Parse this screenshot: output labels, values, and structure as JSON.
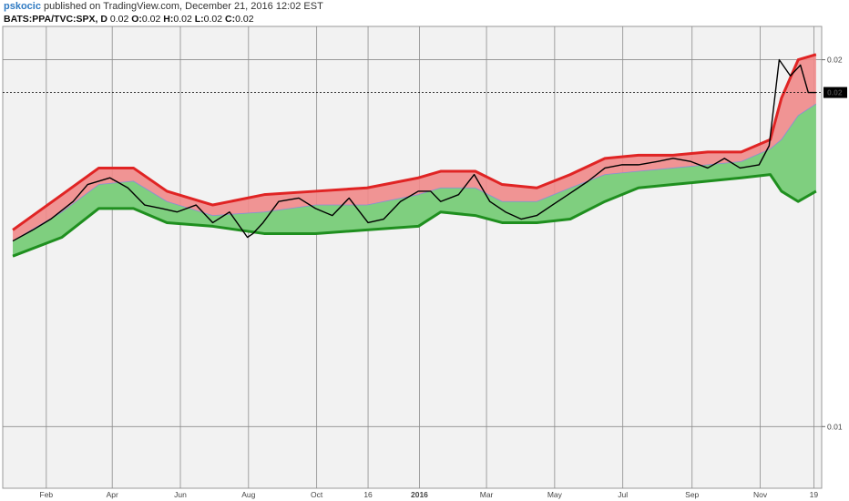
{
  "header": {
    "author": "pskocic",
    "published": "published on TradingView.com, December 21, 2016 12:02 EST",
    "symbol": "BATS:PPA/TVC:SPX, D",
    "open_label": "O:",
    "open": "0.02",
    "high_label": "H:",
    "high": "0.02",
    "low_label": "L:",
    "low": "0.02",
    "close_label": "C:",
    "close": "0.02",
    "last": "0.02"
  },
  "chart_data": {
    "type": "line",
    "title": "",
    "xlabel": "",
    "ylabel": "",
    "y_scale": "log",
    "ylim": [
      0.0089,
      0.0213
    ],
    "y_ticks": [
      0.01,
      0.02
    ],
    "y_tick_labels": [
      "0.01",
      "0.02"
    ],
    "x_ticks": [
      "Feb",
      "Apr",
      "Jun",
      "Aug",
      "Oct",
      "16",
      "2016",
      "Mar",
      "May",
      "Jul",
      "Sep",
      "Nov",
      "19"
    ],
    "x_tick_bold": [
      "2016"
    ],
    "last_value_label": "0.02",
    "last_value": 0.0188,
    "grid": true,
    "legend": "none",
    "colors": {
      "price": "#000000",
      "upper_band": "#e02424",
      "lower_band": "#1f8f1f",
      "upper_fill": "#f08a8a",
      "mid_fill": "#b7b9f2",
      "lower_fill": "#7fcf7f",
      "axis_highlight": "#000000"
    },
    "series": [
      {
        "name": "",
        "role": "price",
        "x_dates": [
          "2015-01-02",
          "2015-01-20",
          "2015-02-05",
          "2015-02-25",
          "2015-03-10",
          "2015-03-30",
          "2015-04-15",
          "2015-04-30",
          "2015-05-15",
          "2015-05-29",
          "2015-06-15",
          "2015-06-30",
          "2015-07-15",
          "2015-07-31",
          "2015-08-05",
          "2015-08-14",
          "2015-08-28",
          "2015-09-15",
          "2015-09-30",
          "2015-10-15",
          "2015-10-30",
          "2015-11-16",
          "2015-11-30",
          "2015-12-15",
          "2015-12-31",
          "2016-01-11",
          "2016-01-20",
          "2016-02-05",
          "2016-02-19",
          "2016-03-04",
          "2016-03-18",
          "2016-04-01",
          "2016-04-15",
          "2016-04-29",
          "2016-05-13",
          "2016-05-31",
          "2016-06-15",
          "2016-06-30",
          "2016-07-15",
          "2016-08-01",
          "2016-08-15",
          "2016-08-31",
          "2016-09-15",
          "2016-09-30",
          "2016-10-14",
          "2016-10-31",
          "2016-11-09",
          "2016-11-18",
          "2016-11-28",
          "2016-12-07",
          "2016-12-14",
          "2016-12-21"
        ],
        "values": [
          0.0142,
          0.0145,
          0.0148,
          0.0153,
          0.0158,
          0.016,
          0.0157,
          0.0152,
          0.0151,
          0.015,
          0.0152,
          0.0147,
          0.015,
          0.0143,
          0.0144,
          0.0147,
          0.0153,
          0.0154,
          0.0151,
          0.0149,
          0.0154,
          0.0147,
          0.0148,
          0.0153,
          0.0156,
          0.0156,
          0.0153,
          0.0155,
          0.0161,
          0.0153,
          0.015,
          0.0148,
          0.0149,
          0.0152,
          0.0155,
          0.0159,
          0.0163,
          0.0164,
          0.0164,
          0.0165,
          0.0166,
          0.0165,
          0.0163,
          0.0166,
          0.0163,
          0.0164,
          0.017,
          0.02,
          0.0194,
          0.0198,
          0.0188,
          0.0188
        ]
      },
      {
        "name": "",
        "role": "upper_band",
        "x_dates": [
          "2015-01-02",
          "2015-02-15",
          "2015-03-20",
          "2015-04-20",
          "2015-05-20",
          "2015-06-30",
          "2015-08-15",
          "2015-09-30",
          "2015-11-15",
          "2015-12-31",
          "2016-01-20",
          "2016-02-20",
          "2016-03-15",
          "2016-04-15",
          "2016-05-15",
          "2016-06-15",
          "2016-07-15",
          "2016-08-15",
          "2016-09-15",
          "2016-10-15",
          "2016-11-10",
          "2016-11-20",
          "2016-12-05",
          "2016-12-21"
        ],
        "values": [
          0.0145,
          0.0155,
          0.0163,
          0.0163,
          0.0156,
          0.0152,
          0.0155,
          0.0156,
          0.0157,
          0.016,
          0.0162,
          0.0162,
          0.0158,
          0.0157,
          0.0161,
          0.0166,
          0.0167,
          0.0167,
          0.0168,
          0.0168,
          0.0172,
          0.0186,
          0.02,
          0.0202
        ]
      },
      {
        "name": "",
        "role": "mid",
        "x_dates": [
          "2015-01-02",
          "2015-02-15",
          "2015-03-20",
          "2015-04-20",
          "2015-05-20",
          "2015-06-30",
          "2015-08-15",
          "2015-09-30",
          "2015-11-15",
          "2015-12-31",
          "2016-01-20",
          "2016-02-20",
          "2016-03-15",
          "2016-04-15",
          "2016-05-15",
          "2016-06-15",
          "2016-07-15",
          "2016-08-15",
          "2016-09-15",
          "2016-10-15",
          "2016-11-10",
          "2016-11-20",
          "2016-12-05",
          "2016-12-21"
        ],
        "values": [
          0.0142,
          0.015,
          0.0158,
          0.0159,
          0.0153,
          0.0149,
          0.015,
          0.0152,
          0.0152,
          0.0155,
          0.0157,
          0.0157,
          0.0153,
          0.0153,
          0.0157,
          0.0161,
          0.0162,
          0.0163,
          0.0164,
          0.0165,
          0.0169,
          0.0172,
          0.018,
          0.0184
        ]
      },
      {
        "name": "",
        "role": "lower_band",
        "x_dates": [
          "2015-01-02",
          "2015-02-15",
          "2015-03-20",
          "2015-04-20",
          "2015-05-20",
          "2015-06-30",
          "2015-08-15",
          "2015-09-30",
          "2015-11-15",
          "2015-12-31",
          "2016-01-20",
          "2016-02-20",
          "2016-03-15",
          "2016-04-15",
          "2016-05-15",
          "2016-06-15",
          "2016-07-15",
          "2016-08-15",
          "2016-09-15",
          "2016-10-15",
          "2016-11-10",
          "2016-11-20",
          "2016-12-05",
          "2016-12-21"
        ],
        "values": [
          0.0138,
          0.0143,
          0.0151,
          0.0151,
          0.0147,
          0.0146,
          0.0144,
          0.0144,
          0.0145,
          0.0146,
          0.015,
          0.0149,
          0.0147,
          0.0147,
          0.0148,
          0.0153,
          0.0157,
          0.0158,
          0.0159,
          0.016,
          0.0161,
          0.0156,
          0.0153,
          0.0156
        ]
      }
    ]
  }
}
